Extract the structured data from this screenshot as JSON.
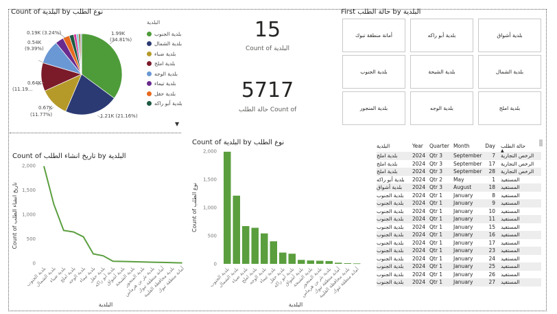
{
  "pie": {
    "title": "Count of البلدية by نوع الطلب",
    "legend_header": "البلدية",
    "legend": [
      {
        "label": "بلدية الجنوب",
        "color": "#4e9b3a"
      },
      {
        "label": "بلدية الشمال",
        "color": "#2c3a73"
      },
      {
        "label": "بلدية ضباء",
        "color": "#b59a29"
      },
      {
        "label": "بلدية املج",
        "color": "#7b1b2a"
      },
      {
        "label": "بلدية الوجه",
        "color": "#6a98d4"
      },
      {
        "label": "بلدية تيماء",
        "color": "#6a2b8e"
      },
      {
        "label": "بلدية حقل",
        "color": "#e76a1f"
      },
      {
        "label": "بلدية أبو راكه",
        "color": "#1e5a43"
      }
    ],
    "more_indicator": "▼",
    "slices": [
      {
        "value": 1990,
        "color": "#4e9b3a"
      },
      {
        "value": 1210,
        "color": "#2c3a73"
      },
      {
        "value": 670,
        "color": "#b59a29"
      },
      {
        "value": 640,
        "color": "#7b1b2a"
      },
      {
        "value": 540,
        "color": "#6a98d4"
      },
      {
        "value": 190,
        "color": "#6a2b8e"
      },
      {
        "value": 150,
        "color": "#e76a1f"
      },
      {
        "value": 100,
        "color": "#1e5a43"
      },
      {
        "value": 60,
        "color": "#d4379a"
      },
      {
        "value": 50,
        "color": "#7fd0d8"
      },
      {
        "value": 40,
        "color": "#a05c2a"
      },
      {
        "value": 30,
        "color": "#9aa8b8"
      }
    ],
    "labels": {
      "l1": "1.99K",
      "l1b": "(34.81%)",
      "l2": "1.21K (21.16%)",
      "l3": "0.67K",
      "l3b": "(11.77%)",
      "l4": "0.64K",
      "l4b": "(11.19...",
      "l5": "0.54K",
      "l5b": "(9.39%)",
      "l6": "0.19K (3.24%)"
    }
  },
  "cards": [
    {
      "value": "15",
      "label": "Count of البلدية"
    },
    {
      "value": "5717",
      "label": "حالة الطلب Count of"
    }
  ],
  "slicer": {
    "title": "First حالة الطلب by البلدية",
    "tiles": [
      "أمانة منطقة تبوك",
      "بلدية أبو راكه",
      "بلدية أشواق",
      "بلدية الجنوب",
      "بلدية الشبحة",
      "بلدية الشمال",
      "بلدية المنجور",
      "بلدية الوجه",
      "بلدية املج"
    ]
  },
  "line": {
    "title": "Count of تاريخ انشاء الطلب by البلدية",
    "ylabel": "Count of تاريخ انشاء الطلب",
    "xlabel": "البلدية",
    "yticks": [
      "0",
      "500",
      "1,000",
      "1,500",
      "2,000"
    ],
    "color": "#5a9e3e"
  },
  "bar": {
    "title": "Count of البلدية by نوع الطلب",
    "ylabel": "Count of نوع الطلب",
    "xlabel": "البلدية",
    "yticks": [
      "0",
      "500",
      "1,000",
      "1,500",
      "2,000"
    ],
    "color": "#5a9e3e"
  },
  "chart_data": [
    {
      "type": "line",
      "title": "Count of تاريخ انشاء الطلب by البلدية",
      "xlabel": "البلدية",
      "ylabel": "Count of تاريخ انشاء الطلب",
      "ylim": [
        0,
        2000
      ],
      "categories": [
        "بلدية الجنوب",
        "بلدية الشمال",
        "بلدية ضباء",
        "بلدية املج",
        "بلدية الوجه",
        "بلدية تيماء",
        "بلدية حقل",
        "بلدية أبو راكه",
        "بلدية أشواق",
        "بلدية الشبحة",
        "بلدية المنجور",
        "بلدية بئر بن هرماس",
        "أمانة منطقة تبوك",
        "بلدية محافظة القليبة",
        "أمانة منطقة تبوك "
      ],
      "values": [
        1990,
        1210,
        670,
        640,
        540,
        190,
        150,
        40,
        35,
        30,
        25,
        20,
        15,
        10,
        5
      ]
    },
    {
      "type": "bar",
      "title": "Count of البلدية by نوع الطلب",
      "xlabel": "البلدية",
      "ylabel": "Count of نوع الطلب",
      "ylim": [
        0,
        2000
      ],
      "categories": [
        "بلدية الجنوب",
        "بلدية الشمال",
        "بلدية ضباء",
        "بلدية املج",
        "بلدية الوجه",
        "بلدية تيماء",
        "بلدية حقل",
        "بلدية أبو راكه",
        "بلدية أشواق",
        "بلدية الشبحة",
        "بلدية المنجور",
        "بلدية بئر بن هرماس",
        "أمانة منطقة تبوك",
        "بلدية محافظة القليبة",
        "أمانة منطقة تبوك "
      ],
      "values": [
        1990,
        1210,
        670,
        640,
        540,
        400,
        200,
        180,
        70,
        60,
        55,
        50,
        20,
        12,
        8
      ]
    }
  ],
  "table": {
    "headers": [
      "البلدية",
      "Year",
      "Quarter",
      "Month",
      "Day",
      "حالة الطلب"
    ],
    "sort_indicator": "▲",
    "rows": [
      [
        "بلدية املج",
        "2024",
        "Qtr 3",
        "September",
        "7",
        "الرخص التجارية"
      ],
      [
        "بلدية املج",
        "2024",
        "Qtr 3",
        "September",
        "17",
        "الرخص التجارية"
      ],
      [
        "بلدية املج",
        "2024",
        "Qtr 3",
        "September",
        "28",
        "الرخص التجارية"
      ],
      [
        "بلدية أبو راكه",
        "2024",
        "Qtr 2",
        "May",
        "1",
        "المستفيد"
      ],
      [
        "بلدية أشواق",
        "2024",
        "Qtr 3",
        "August",
        "18",
        "المستفيد"
      ],
      [
        "بلدية الجنوب",
        "2024",
        "Qtr 1",
        "January",
        "8",
        "المستفيد"
      ],
      [
        "بلدية الجنوب",
        "2024",
        "Qtr 1",
        "January",
        "9",
        "المستفيد"
      ],
      [
        "بلدية الجنوب",
        "2024",
        "Qtr 1",
        "January",
        "10",
        "المستفيد"
      ],
      [
        "بلدية الجنوب",
        "2024",
        "Qtr 1",
        "January",
        "11",
        "المستفيد"
      ],
      [
        "بلدية الجنوب",
        "2024",
        "Qtr 1",
        "January",
        "15",
        "المستفيد"
      ],
      [
        "بلدية الجنوب",
        "2024",
        "Qtr 1",
        "January",
        "16",
        "المستفيد"
      ],
      [
        "بلدية الجنوب",
        "2024",
        "Qtr 1",
        "January",
        "17",
        "المستفيد"
      ],
      [
        "بلدية الجنوب",
        "2024",
        "Qtr 1",
        "January",
        "23",
        "المستفيد"
      ],
      [
        "بلدية الجنوب",
        "2024",
        "Qtr 1",
        "January",
        "24",
        "المستفيد"
      ],
      [
        "بلدية الجنوب",
        "2024",
        "Qtr 1",
        "January",
        "25",
        "المستفيد"
      ],
      [
        "بلدية الجنوب",
        "2024",
        "Qtr 1",
        "January",
        "26",
        "المستفيد"
      ],
      [
        "بلدية الجنوب",
        "2024",
        "Qtr 1",
        "January",
        "27",
        "المستفيد"
      ]
    ]
  }
}
